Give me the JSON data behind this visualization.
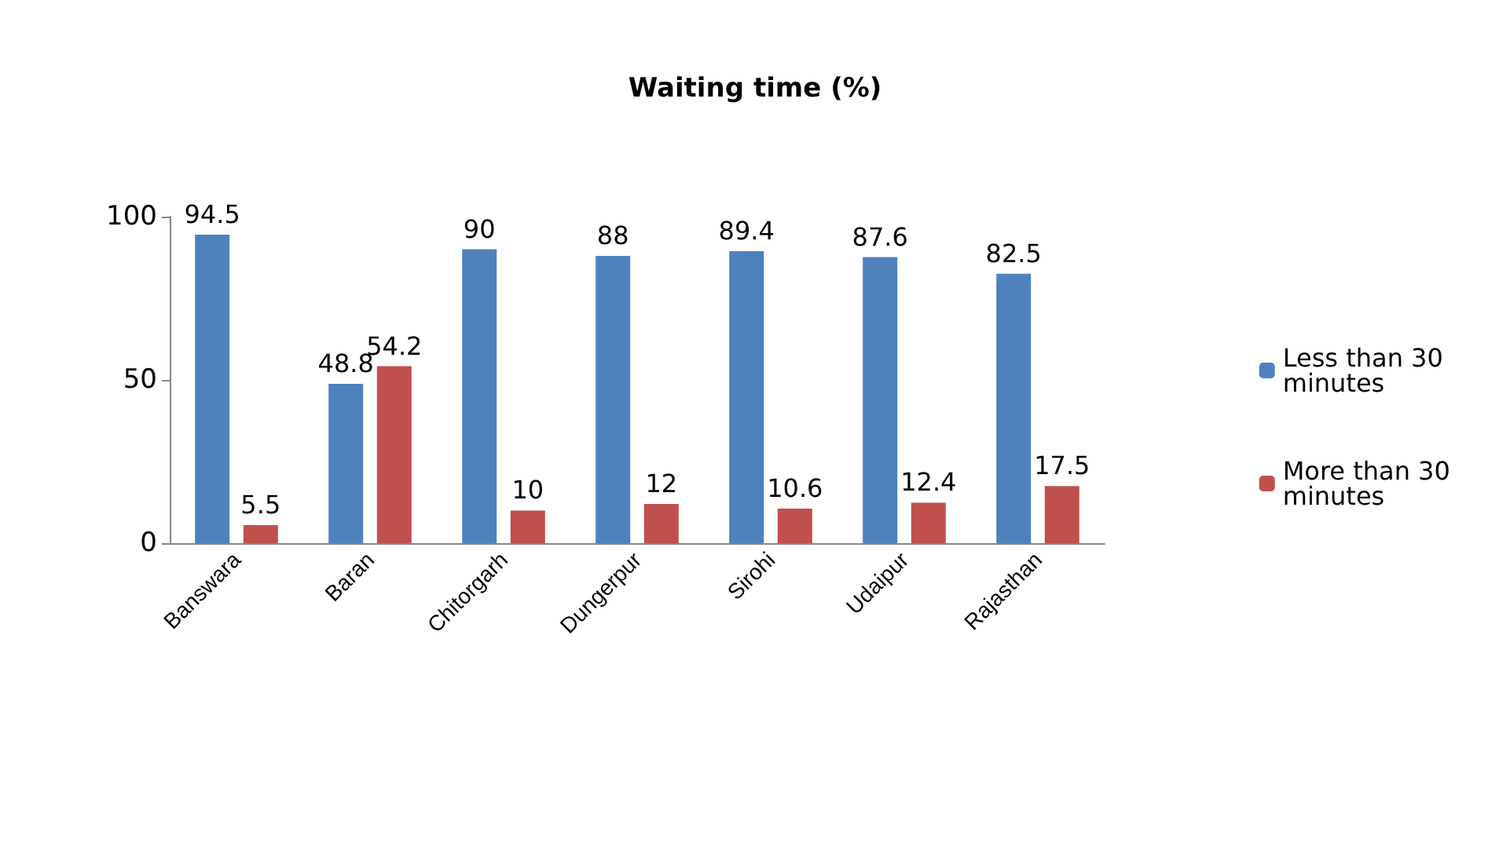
{
  "chart_data": {
    "type": "bar",
    "title": "Waiting time (%)",
    "categories": [
      "Banswara",
      "Baran",
      "Chitorgarh",
      "Dungerpur",
      "Sirohi",
      "Udaipur",
      "Rajasthan"
    ],
    "series": [
      {
        "name": "Less than 30 minutes",
        "color": "#4f81bd",
        "values": [
          94.5,
          48.8,
          90,
          88,
          89.4,
          87.6,
          82.5
        ]
      },
      {
        "name": "More than 30 minutes",
        "color": "#c0504d",
        "values": [
          5.5,
          54.2,
          10,
          12,
          10.6,
          12.4,
          17.5
        ]
      }
    ],
    "ylim": [
      0,
      100
    ],
    "yticks": [
      0,
      50,
      100
    ],
    "data_labels": true,
    "legend": "right",
    "grid": false
  }
}
